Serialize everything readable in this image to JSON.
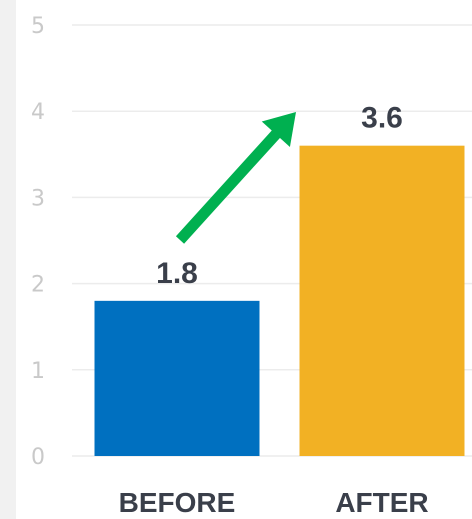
{
  "chart_data": {
    "type": "bar",
    "categories": [
      "BEFORE",
      "AFTER"
    ],
    "values": [
      1.8,
      3.6
    ],
    "data_labels": [
      "1.8",
      "3.6"
    ],
    "colors": [
      "#0070c0",
      "#f2b124"
    ],
    "ylim": [
      0,
      5
    ],
    "yticks": [
      "0",
      "1",
      "2",
      "3",
      "4",
      "5"
    ],
    "grid": true,
    "title": "",
    "xlabel": "",
    "ylabel": "",
    "annotation": {
      "type": "arrow",
      "icon": "arrow-up-right-icon",
      "color": "#00b050",
      "from_category": "BEFORE",
      "to_category": "AFTER"
    },
    "grid_color": "#ececec"
  }
}
